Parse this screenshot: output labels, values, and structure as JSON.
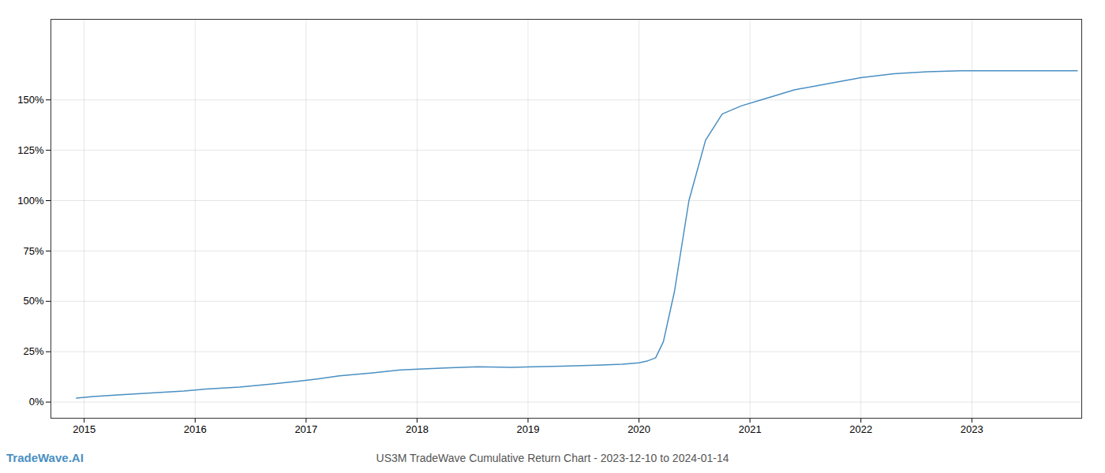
{
  "chart_data": {
    "type": "line",
    "title": "US3M TradeWave Cumulative Return Chart - 2023-12-10 to 2024-01-14",
    "annotations": [
      "TradeWave.AI"
    ],
    "x": [
      2014.93,
      2015.08,
      2015.3,
      2015.6,
      2015.9,
      2016.1,
      2016.4,
      2016.7,
      2016.95,
      2017.1,
      2017.3,
      2017.6,
      2017.85,
      2018.05,
      2018.3,
      2018.55,
      2018.85,
      2019.05,
      2019.3,
      2019.55,
      2019.85,
      2020.0,
      2020.08,
      2020.15,
      2020.22,
      2020.32,
      2020.45,
      2020.6,
      2020.75,
      2020.92,
      2021.1,
      2021.4,
      2021.7,
      2022.0,
      2022.3,
      2022.6,
      2022.9,
      2023.2,
      2023.6,
      2023.95
    ],
    "values": [
      2.0,
      2.8,
      3.5,
      4.5,
      5.5,
      6.5,
      7.5,
      9.0,
      10.5,
      11.5,
      13.0,
      14.5,
      16.0,
      16.5,
      17.0,
      17.5,
      17.2,
      17.5,
      17.8,
      18.2,
      18.8,
      19.5,
      20.5,
      22.0,
      30.0,
      55.0,
      100.0,
      130.0,
      143.0,
      147.0,
      150.0,
      155.0,
      158.0,
      161.0,
      163.0,
      164.0,
      164.5,
      164.5,
      164.5,
      164.5
    ],
    "color": "#4a8fc2",
    "xlim": [
      2014.7,
      2023.99
    ],
    "ylim": [
      -8,
      190
    ],
    "xticks": [
      2015,
      2016,
      2017,
      2018,
      2019,
      2020,
      2021,
      2022,
      2023
    ],
    "yticks": [
      {
        "value": 0,
        "label": "0%"
      },
      {
        "value": 25,
        "label": "25%"
      },
      {
        "value": 50,
        "label": "50%"
      },
      {
        "value": 75,
        "label": "75%"
      },
      {
        "value": 100,
        "label": "100%"
      },
      {
        "value": 125,
        "label": "125%"
      },
      {
        "value": 150,
        "label": "150%"
      }
    ],
    "grid": true
  }
}
